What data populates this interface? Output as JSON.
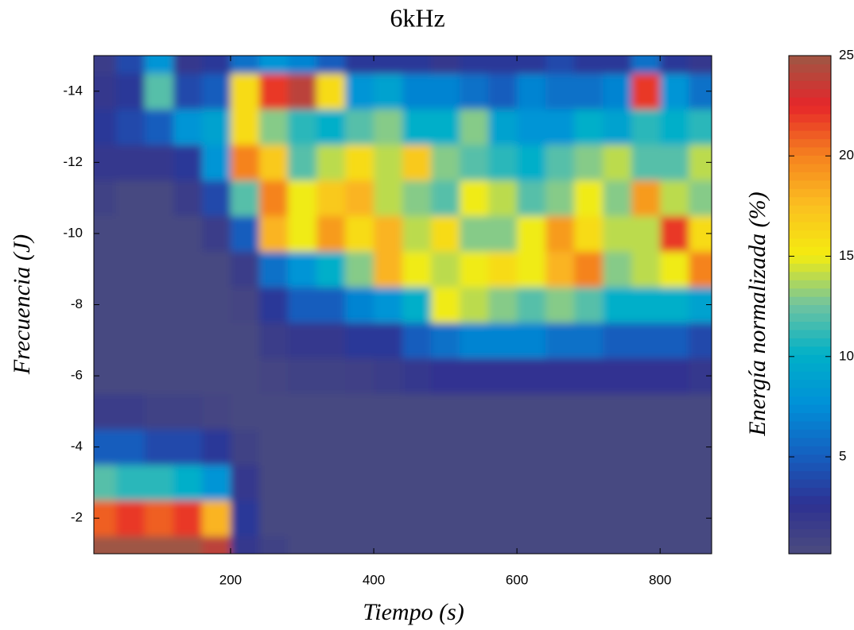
{
  "chart_data": {
    "type": "contour",
    "title": "6kHz",
    "x_label": "Tiempo (s)",
    "y_label": "Frecuencia (J)",
    "colorbar_label": "Energía normalizada (%)",
    "x": [
      20,
      60,
      100,
      140,
      180,
      220,
      260,
      300,
      340,
      380,
      420,
      460,
      500,
      540,
      580,
      620,
      660,
      700,
      740,
      780,
      820,
      860
    ],
    "y": [
      -1,
      -2,
      -3,
      -4,
      -5,
      -6,
      -7,
      -8,
      -9,
      -10,
      -11,
      -12,
      -13,
      -14,
      -15
    ],
    "z": [
      [
        25,
        25,
        25,
        25,
        24,
        2,
        1,
        0.5,
        0.5,
        0.5,
        0.5,
        0.5,
        0.5,
        0.5,
        0.5,
        0.5,
        0.5,
        0.5,
        0.5,
        0.5,
        0.5,
        0.5
      ],
      [
        21,
        22,
        21,
        22,
        18,
        3,
        0.5,
        0.5,
        0.5,
        0.5,
        0.5,
        0.5,
        0.5,
        0.5,
        0.5,
        0.5,
        0.5,
        0.5,
        0.5,
        0.5,
        0.5,
        0.5
      ],
      [
        12,
        11,
        11,
        10,
        8,
        2,
        0.5,
        0.5,
        0.5,
        0.5,
        0.5,
        0.5,
        0.5,
        0.5,
        0.5,
        0.5,
        0.5,
        0.5,
        0.5,
        0.5,
        0.5,
        0.5
      ],
      [
        5,
        5,
        4,
        4,
        3,
        1,
        0.5,
        0.5,
        0.5,
        0.5,
        0.5,
        0.5,
        0.5,
        0.5,
        0.5,
        0.5,
        0.5,
        0.5,
        0.5,
        0.5,
        0.5,
        0.5
      ],
      [
        1.5,
        1.5,
        1,
        1,
        0.8,
        0.5,
        0.5,
        0.5,
        0.5,
        0.5,
        0.5,
        0.5,
        0.5,
        0.5,
        0.5,
        0.5,
        0.5,
        0.5,
        0.5,
        0.5,
        0.5,
        0.5
      ],
      [
        0.5,
        0.5,
        0.5,
        0.5,
        0.5,
        0.5,
        0.8,
        1,
        1,
        1.2,
        1.5,
        2,
        2.5,
        2.5,
        2.5,
        2.5,
        2.5,
        2.5,
        2.5,
        2.5,
        2.5,
        2
      ],
      [
        0.5,
        0.5,
        0.5,
        0.5,
        0.5,
        0.5,
        1.5,
        2,
        2,
        3,
        3,
        5,
        6,
        7,
        7,
        7,
        6,
        6,
        5,
        5,
        5,
        4
      ],
      [
        0.5,
        0.5,
        0.5,
        0.5,
        0.5,
        0.8,
        3,
        5,
        5,
        7,
        8,
        10,
        15,
        14,
        13,
        12,
        13,
        12,
        10,
        10,
        10,
        9
      ],
      [
        0.5,
        0.5,
        0.5,
        0.5,
        0.5,
        1.5,
        6,
        8,
        10,
        13,
        18,
        15,
        14,
        15,
        16,
        15,
        18,
        20,
        13,
        14,
        15,
        20
      ],
      [
        0.5,
        0.5,
        0.5,
        0.5,
        1.5,
        5,
        18,
        15,
        19,
        16,
        18,
        14,
        16,
        13,
        13,
        15,
        19,
        16,
        14,
        14,
        22,
        16
      ],
      [
        1,
        0.5,
        0.5,
        1.5,
        4,
        12,
        20,
        15,
        17,
        18,
        14,
        13,
        12,
        15,
        14,
        12,
        13,
        15,
        13,
        19,
        14,
        13
      ],
      [
        2,
        2,
        2,
        3,
        8,
        20,
        17,
        12,
        14,
        16,
        14,
        17,
        13,
        12,
        11,
        10,
        12,
        13,
        14,
        12,
        12,
        14
      ],
      [
        3,
        4,
        5,
        8,
        9,
        16,
        13,
        11,
        10,
        12,
        13,
        10,
        10,
        13,
        9,
        8,
        8,
        10,
        9,
        11,
        10,
        11
      ],
      [
        2,
        3,
        12,
        4,
        5,
        16,
        22,
        24,
        16,
        8,
        9,
        7,
        7,
        6,
        5,
        7,
        6,
        6,
        7,
        22,
        8,
        6
      ],
      [
        1.5,
        4,
        8,
        2,
        3,
        6,
        8,
        7,
        5,
        3,
        3,
        3,
        2,
        3,
        3,
        3,
        4,
        3,
        3,
        6,
        3,
        2
      ]
    ],
    "xlim": [
      9,
      872
    ],
    "ylim": [
      -1,
      -15
    ],
    "xticks": [
      200,
      400,
      600,
      800
    ],
    "yticks": [
      -14,
      -12,
      -10,
      -8,
      -6,
      -4,
      -2
    ],
    "clim": [
      0.17,
      25
    ],
    "cticks": [
      5,
      10,
      15,
      20,
      25
    ],
    "colormap": [
      "#4b4b7e",
      "#2e3192",
      "#1560c0",
      "#0090d8",
      "#00b0c8",
      "#70c4a0",
      "#f4ec10",
      "#fbbf20",
      "#f5821f",
      "#e6262a",
      "#9e5744"
    ]
  }
}
